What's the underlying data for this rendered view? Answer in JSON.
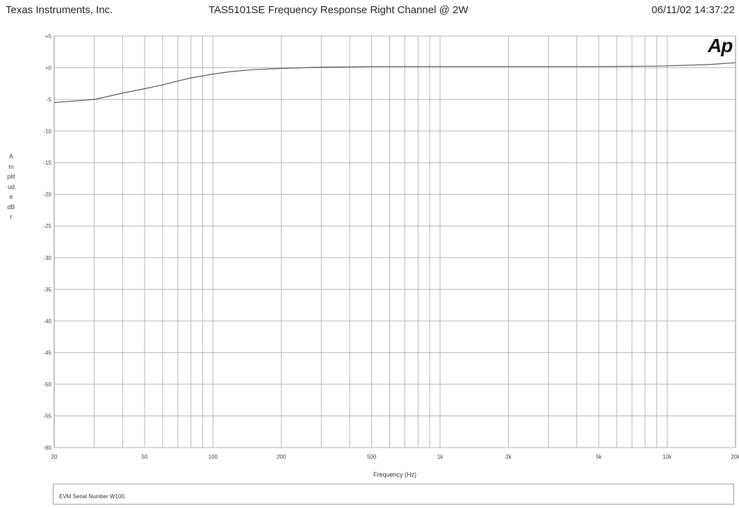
{
  "header": {
    "left": "Texas Instruments, Inc.",
    "center": "TAS5101SE   Frequency Response Right Channel @ 2W",
    "right": "06/11/02 14:37:22"
  },
  "logo": "Ap",
  "notes": "EVM Serial Number W100.",
  "chart_data": {
    "type": "line",
    "title": "TAS5101SE   Frequency Response Right Channel @ 2W",
    "xlabel": "Frequency (Hz)",
    "ylabel": "Amplitude dBr",
    "x_scale": "log",
    "xlim": [
      20,
      20000
    ],
    "ylim": [
      -60,
      5
    ],
    "grid": true,
    "x_ticks": [
      {
        "value": 20,
        "label": "20"
      },
      {
        "value": 50,
        "label": "50"
      },
      {
        "value": 100,
        "label": "100"
      },
      {
        "value": 200,
        "label": "200"
      },
      {
        "value": 500,
        "label": "500"
      },
      {
        "value": 1000,
        "label": "1k"
      },
      {
        "value": 2000,
        "label": "2k"
      },
      {
        "value": 5000,
        "label": "5k"
      },
      {
        "value": 10000,
        "label": "10k"
      },
      {
        "value": 20000,
        "label": "20k"
      }
    ],
    "y_ticks": [
      {
        "value": 5,
        "label": "+5"
      },
      {
        "value": 0,
        "label": "+0"
      },
      {
        "value": -5,
        "label": "-5"
      },
      {
        "value": -10,
        "label": "-10"
      },
      {
        "value": -15,
        "label": "-15"
      },
      {
        "value": -20,
        "label": "-20"
      },
      {
        "value": -25,
        "label": "-25"
      },
      {
        "value": -30,
        "label": "-30"
      },
      {
        "value": -35,
        "label": "-35"
      },
      {
        "value": -40,
        "label": "-40"
      },
      {
        "value": -45,
        "label": "-45"
      },
      {
        "value": -50,
        "label": "-50"
      },
      {
        "value": -55,
        "label": "-55"
      },
      {
        "value": -60,
        "label": "-60"
      }
    ],
    "series": [
      {
        "color": "#555555",
        "x": [
          20,
          30,
          40,
          50,
          60,
          70,
          80,
          100,
          120,
          150,
          200,
          250,
          300,
          400,
          500,
          700,
          1000,
          2000,
          5000,
          8000,
          10000,
          15000,
          20000
        ],
        "y": [
          -5.5,
          -5.0,
          -4.0,
          -3.3,
          -2.7,
          -2.1,
          -1.6,
          -1.0,
          -0.6,
          -0.3,
          -0.1,
          0.0,
          0.1,
          0.15,
          0.2,
          0.2,
          0.2,
          0.2,
          0.2,
          0.25,
          0.3,
          0.5,
          0.8
        ]
      }
    ]
  }
}
